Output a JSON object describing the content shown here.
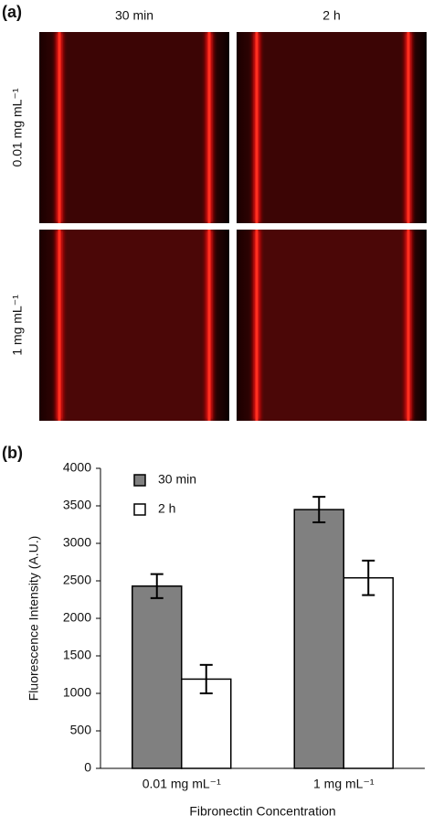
{
  "panel_a": {
    "label": "(a)",
    "columns": [
      "30 min",
      "2 h"
    ],
    "rows": [
      "0.01 mg mL⁻¹",
      "1 mg mL⁻¹"
    ]
  },
  "chart_data": {
    "type": "bar",
    "label": "(b)",
    "y_label": "Fluorescence Intensity (A.U.)",
    "x_label": "Fibronectin Concentration",
    "categories": [
      "0.01 mg mL⁻¹",
      "1 mg mL⁻¹"
    ],
    "series": [
      {
        "name": "30 min",
        "color": "#808080",
        "values": [
          2430,
          3450
        ],
        "errors": [
          160,
          170
        ]
      },
      {
        "name": "2 h",
        "color": "#ffffff",
        "values": [
          1190,
          2540
        ],
        "errors": [
          190,
          230
        ]
      }
    ],
    "ylim": [
      0,
      4000
    ],
    "yticks": [
      0,
      500,
      1000,
      1500,
      2000,
      2500,
      3000,
      3500,
      4000
    ],
    "grid": false
  }
}
